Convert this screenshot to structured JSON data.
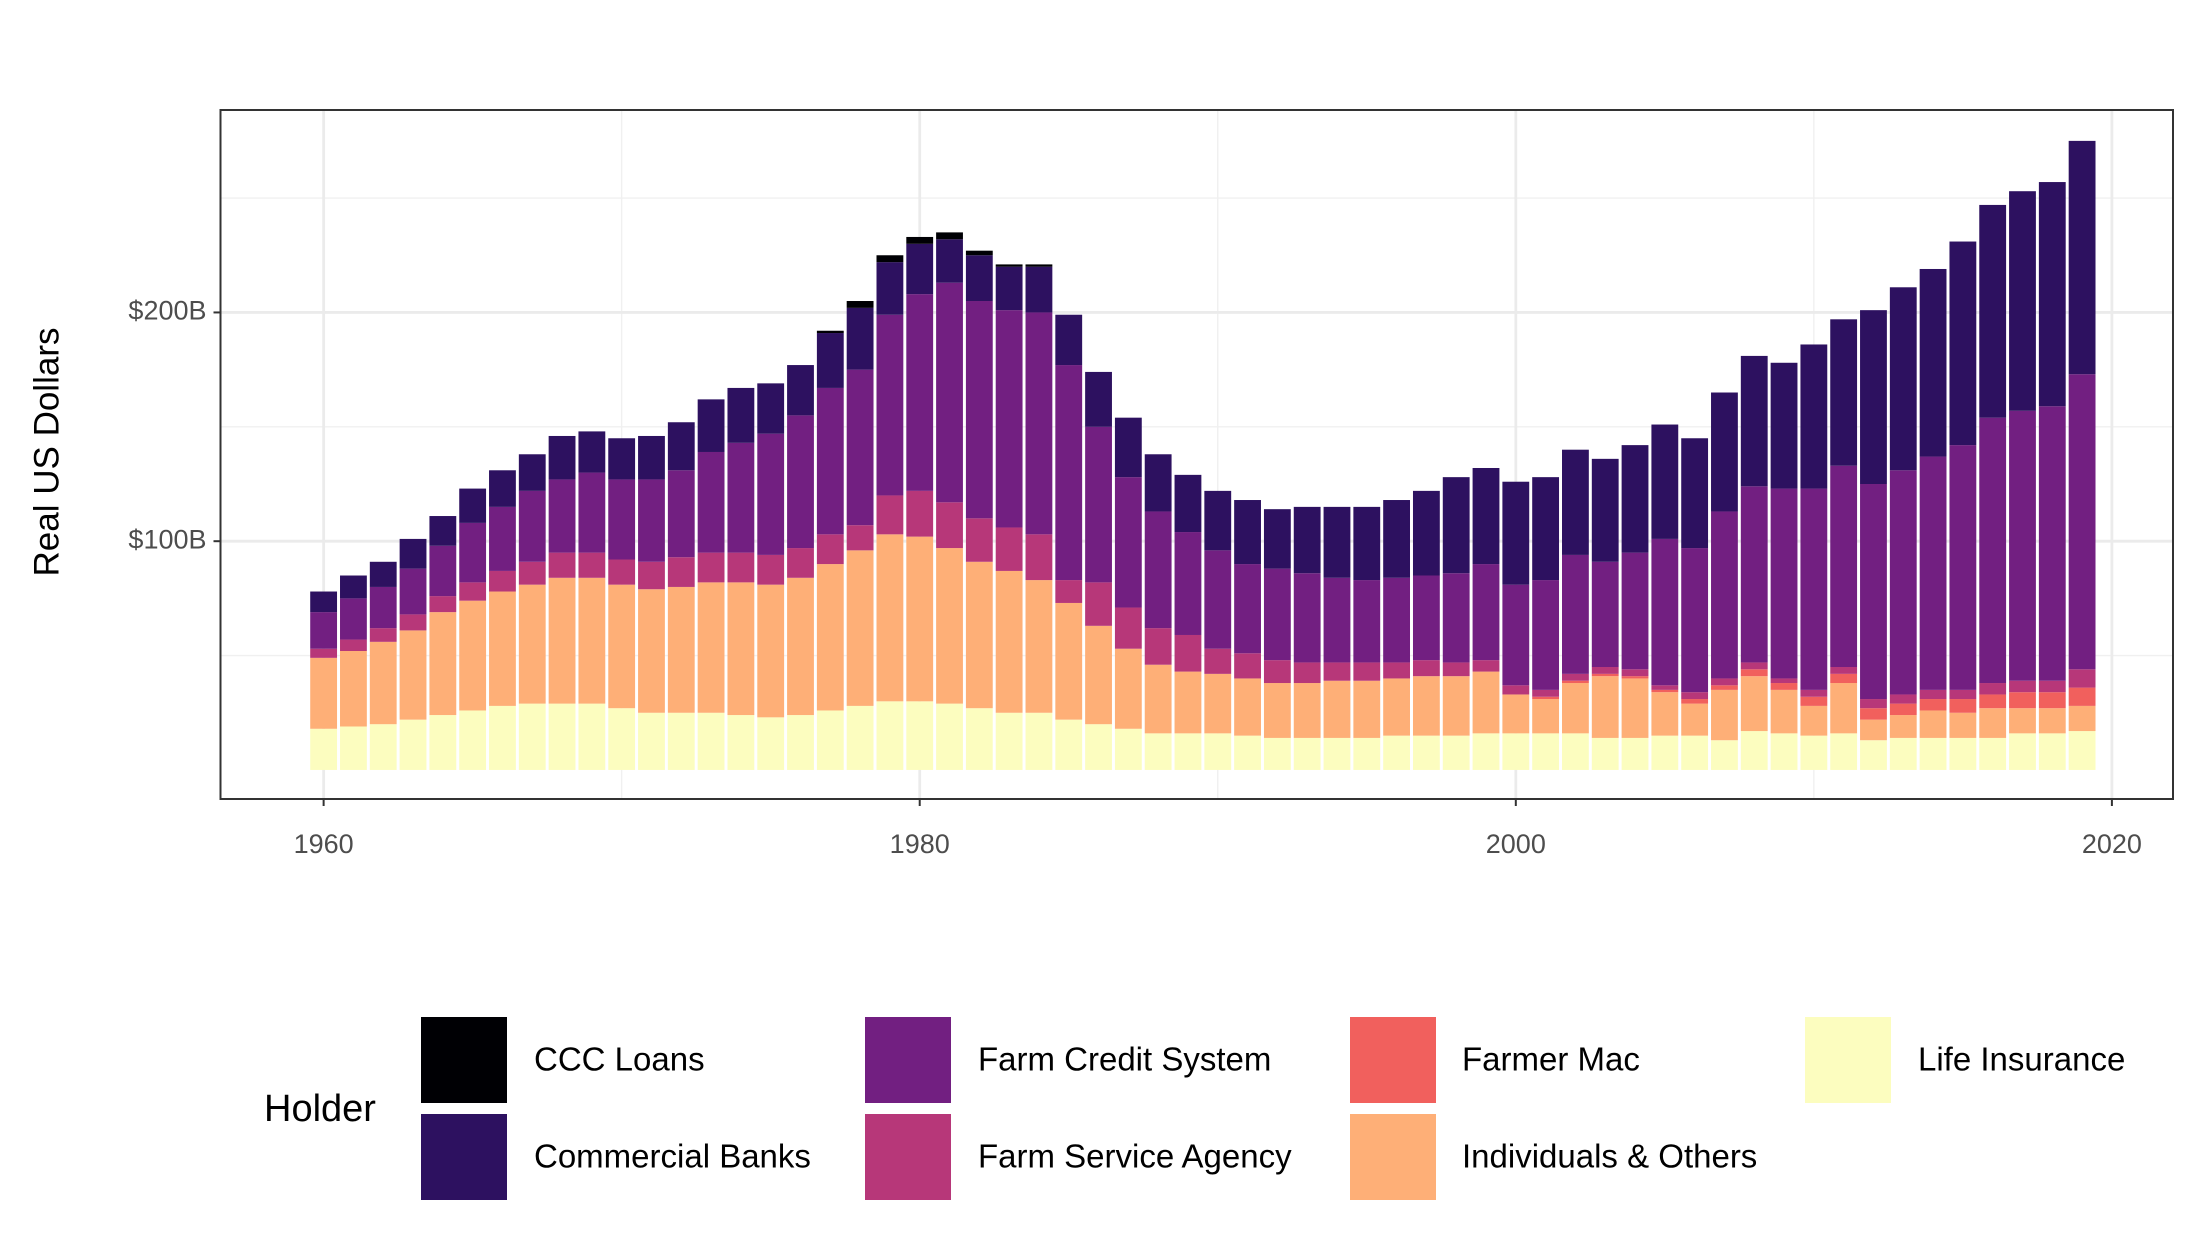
{
  "chart_data": {
    "type": "stacked_bar",
    "y_label": "Real US Dollars",
    "legend_title": "Holder",
    "xlim": [
      1956.54,
      2022.05
    ],
    "ylim": [
      -12.7,
      288.5
    ],
    "xticks": [
      1960,
      1980,
      2000,
      2020
    ],
    "xticks_minor": [
      1970,
      1990,
      2010
    ],
    "yticks": [
      {
        "value": 100,
        "label": "$100B"
      },
      {
        "value": 200,
        "label": "$200B"
      }
    ],
    "yticks_minor": [
      50,
      150,
      250
    ],
    "grid": true,
    "x": [
      1960,
      1961,
      1962,
      1963,
      1964,
      1965,
      1966,
      1967,
      1968,
      1969,
      1970,
      1971,
      1972,
      1973,
      1974,
      1975,
      1976,
      1977,
      1978,
      1979,
      1980,
      1981,
      1982,
      1983,
      1984,
      1985,
      1986,
      1987,
      1988,
      1989,
      1990,
      1991,
      1992,
      1993,
      1994,
      1995,
      1996,
      1997,
      1998,
      1999,
      2000,
      2001,
      2002,
      2003,
      2004,
      2005,
      2006,
      2007,
      2008,
      2009,
      2010,
      2011,
      2012,
      2013,
      2014,
      2015,
      2016,
      2017,
      2018,
      2019
    ],
    "series": [
      {
        "name": "CCC Loans",
        "color": "#000004",
        "values": [
          0,
          0,
          0,
          0,
          0,
          0,
          0,
          0,
          0,
          0,
          0,
          0,
          0,
          0,
          0,
          0,
          0,
          1,
          3,
          3,
          3,
          3,
          2,
          1,
          1,
          0,
          0,
          0,
          0,
          0,
          0,
          0,
          0,
          0,
          0,
          0,
          0,
          0,
          0,
          0,
          0,
          0,
          0,
          0,
          0,
          0,
          0,
          0,
          0,
          0,
          0,
          0,
          0,
          0,
          0,
          0,
          0,
          0,
          0,
          0
        ]
      },
      {
        "name": "Commercial Banks",
        "color": "#2d1160",
        "values": [
          9,
          10,
          11,
          13,
          13,
          15,
          16,
          16,
          19,
          18,
          18,
          19,
          21,
          23,
          24,
          22,
          22,
          24,
          27,
          23,
          22,
          19,
          20,
          19,
          20,
          22,
          24,
          26,
          25,
          25,
          26,
          28,
          26,
          29,
          31,
          32,
          34,
          37,
          42,
          42,
          45,
          45,
          46,
          45,
          47,
          50,
          48,
          52,
          57,
          55,
          63,
          64,
          76,
          80,
          82,
          89,
          93,
          96,
          98,
          102
        ]
      },
      {
        "name": "Farm Credit System",
        "color": "#721f81",
        "values": [
          16,
          18,
          18,
          20,
          22,
          26,
          28,
          31,
          32,
          35,
          35,
          36,
          38,
          44,
          48,
          53,
          58,
          64,
          68,
          79,
          86,
          96,
          95,
          95,
          97,
          94,
          68,
          57,
          51,
          45,
          43,
          39,
          40,
          39,
          37,
          36,
          37,
          37,
          39,
          42,
          44,
          48,
          52,
          46,
          51,
          64,
          63,
          73,
          77,
          83,
          88,
          88,
          94,
          98,
          102,
          107,
          116,
          118,
          120,
          129
        ]
      },
      {
        "name": "Farm Service Agency",
        "color": "#b73779",
        "values": [
          4,
          5,
          6,
          7,
          7,
          8,
          9,
          10,
          11,
          11,
          11,
          12,
          13,
          13,
          13,
          13,
          13,
          13,
          11,
          17,
          20,
          20,
          19,
          19,
          20,
          10,
          19,
          18,
          16,
          16,
          11,
          11,
          10,
          9,
          8,
          8,
          7,
          7,
          6,
          5,
          4,
          3,
          3,
          3,
          3,
          2,
          3,
          3,
          3,
          2,
          3,
          3,
          4,
          4,
          4,
          4,
          5,
          5,
          5,
          8
        ]
      },
      {
        "name": "Farmer Mac",
        "color": "#f1605d",
        "values": [
          0,
          0,
          0,
          0,
          0,
          0,
          0,
          0,
          0,
          0,
          0,
          0,
          0,
          0,
          0,
          0,
          0,
          0,
          0,
          0,
          0,
          0,
          0,
          0,
          0,
          0,
          0,
          0,
          0,
          0,
          0,
          0,
          0,
          0,
          0,
          0,
          0,
          0,
          0,
          0,
          0,
          1,
          1,
          1,
          1,
          1,
          2,
          2,
          3,
          3,
          4,
          4,
          5,
          5,
          5,
          6,
          6,
          7,
          7,
          8
        ]
      },
      {
        "name": "Individuals & Others",
        "color": "#feaf77",
        "values": [
          31,
          33,
          36,
          39,
          45,
          48,
          50,
          52,
          55,
          55,
          54,
          54,
          55,
          57,
          58,
          58,
          60,
          64,
          68,
          73,
          72,
          68,
          64,
          62,
          58,
          51,
          43,
          35,
          30,
          27,
          26,
          25,
          24,
          24,
          25,
          25,
          25,
          26,
          26,
          27,
          17,
          15,
          22,
          27,
          26,
          19,
          14,
          22,
          24,
          19,
          13,
          22,
          9,
          10,
          12,
          11,
          13,
          11,
          11,
          11
        ]
      },
      {
        "name": "Life Insurance",
        "color": "#fcfdbf",
        "values": [
          18,
          19,
          20,
          22,
          24,
          26,
          28,
          29,
          29,
          29,
          27,
          25,
          25,
          25,
          24,
          23,
          24,
          26,
          28,
          30,
          30,
          29,
          27,
          25,
          25,
          22,
          20,
          18,
          16,
          16,
          16,
          15,
          14,
          14,
          14,
          14,
          15,
          15,
          15,
          16,
          16,
          16,
          16,
          14,
          14,
          15,
          15,
          13,
          17,
          16,
          15,
          16,
          13,
          14,
          14,
          14,
          14,
          16,
          16,
          17
        ]
      }
    ]
  }
}
